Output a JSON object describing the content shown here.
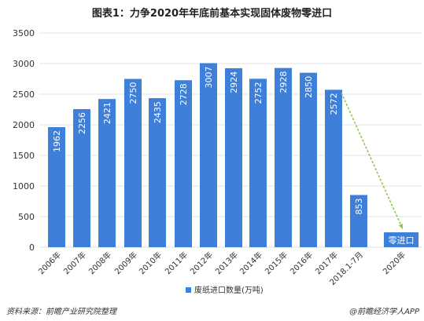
{
  "page_title": "图表1：力争2020年年底前基本实现固体废物零进口",
  "source_text": "资料来源：前瞻产业研究院整理",
  "credit_text": "@前瞻经济学人APP",
  "chart_data": {
    "type": "bar",
    "title": "图表1：力争2020年年底前基本实现固体废物零进口",
    "categories": [
      "2006年",
      "2007年",
      "2008年",
      "2009年",
      "2010年",
      "2011年",
      "2012年",
      "2013年",
      "2014年",
      "2015年",
      "2016年",
      "2017年",
      "2018.1-7月",
      "2020年"
    ],
    "series": [
      {
        "name": "废纸进口数量(万吨)",
        "values": [
          1962,
          2256,
          2421,
          2750,
          2435,
          2728,
          3007,
          2924,
          2752,
          2928,
          2850,
          2572,
          853,
          0
        ],
        "data_labels": [
          "1962",
          "2256",
          "2421",
          "2750",
          "2435",
          "2728",
          "3007",
          "2924",
          "2752",
          "2928",
          "2850",
          "2572",
          "853",
          ""
        ]
      }
    ],
    "ylim": [
      0,
      3500
    ],
    "yticks": [
      0,
      500,
      1000,
      1500,
      2000,
      2500,
      3000,
      3500
    ],
    "grid": true,
    "legend": "bottom-center",
    "annotation": "零进口",
    "colors": {
      "bar": "#3d7fd9",
      "arrow": "#8cc63f",
      "grid": "#e3e3e3"
    }
  }
}
